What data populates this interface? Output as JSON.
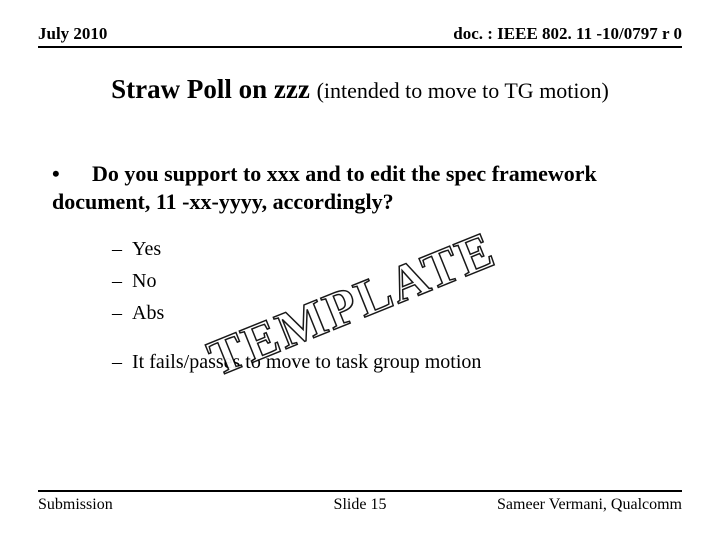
{
  "header": {
    "left": "July 2010",
    "right": "doc. : IEEE 802. 11 -10/0797 r 0"
  },
  "title": {
    "main": "Straw Poll on zzz ",
    "sub": "(intended to move to TG motion)"
  },
  "question": {
    "bullet": "•",
    "text": "Do you support to xxx and to edit the spec framework document, 11 -xx-yyyy, accordingly?"
  },
  "options": [
    {
      "dash": "–",
      "label": "Yes"
    },
    {
      "dash": "–",
      "label": "No"
    },
    {
      "dash": "–",
      "label": "Abs"
    }
  ],
  "outcome": {
    "dash": "–",
    "text": "It fails/passes to move to task group motion"
  },
  "watermark": "TEMPLATE",
  "footer": {
    "left": "Submission",
    "center": "Slide 15",
    "right": "Sameer Vermani, Qualcomm"
  },
  "style": {
    "page_bg": "#ffffff",
    "text_color": "#000000",
    "rule_color": "#000000",
    "title_main_fontsize": 27,
    "title_sub_fontsize": 22,
    "body_fontsize": 22,
    "sub_fontsize": 20,
    "header_fontsize": 17,
    "footer_fontsize": 16,
    "watermark_fontsize": 52,
    "watermark_rotate_deg": -22
  }
}
